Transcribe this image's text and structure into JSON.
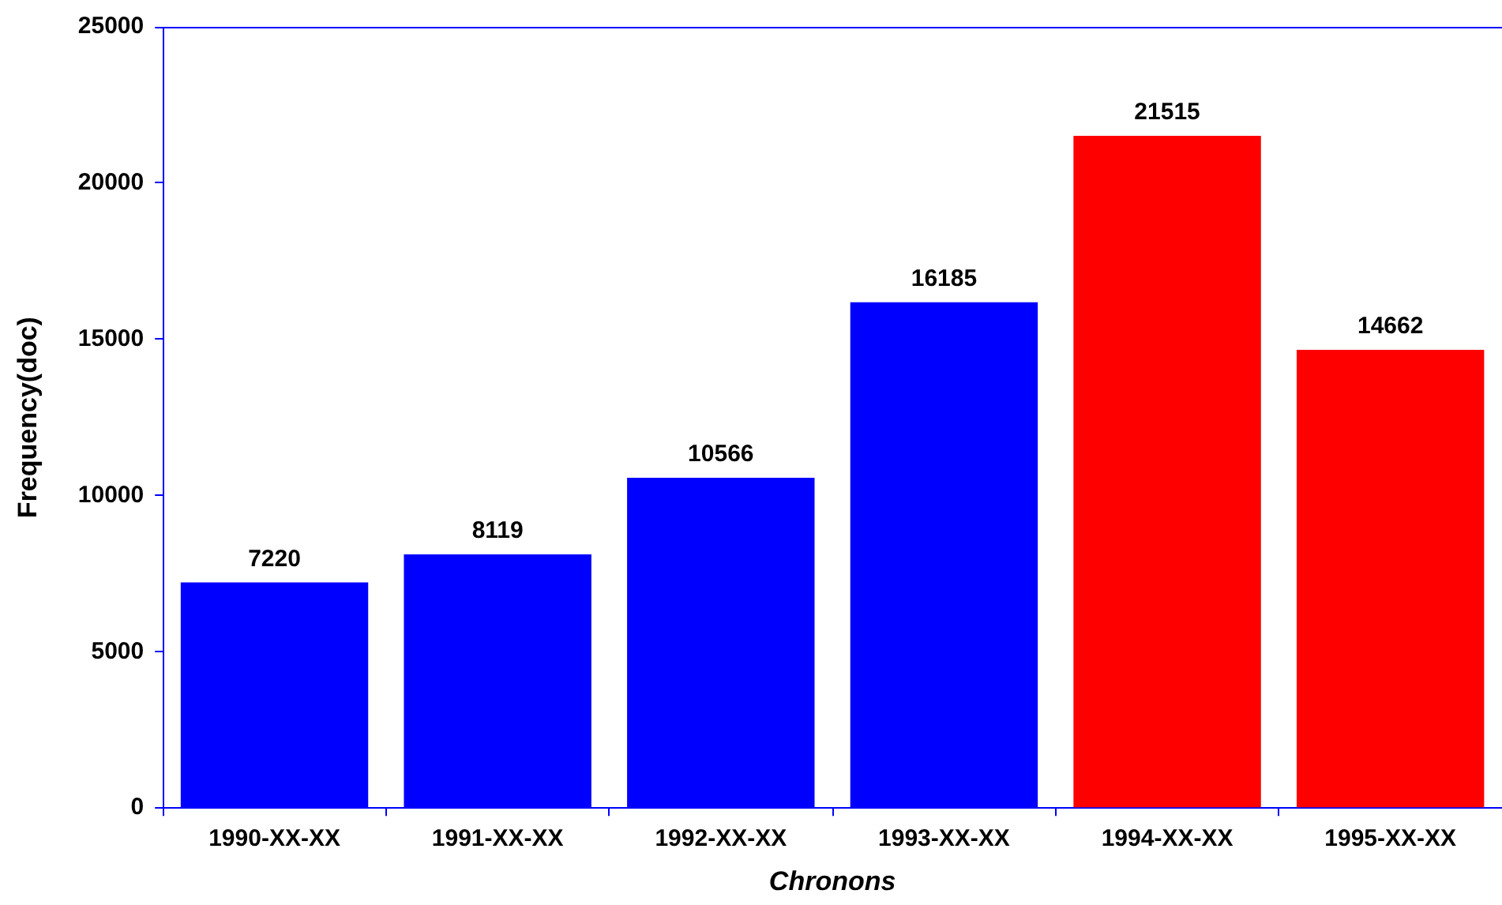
{
  "chart_data": {
    "type": "bar",
    "xlabel": "Chronons",
    "ylabel": "Frequency(doc)",
    "categories": [
      "1990-XX-XX",
      "1991-XX-XX",
      "1992-XX-XX",
      "1993-XX-XX",
      "1994-XX-XX",
      "1995-XX-XX"
    ],
    "values": [
      7220,
      8119,
      10566,
      16185,
      21515,
      14662
    ],
    "colors": [
      "#0000ff",
      "#0000ff",
      "#0000ff",
      "#0000ff",
      "#ff0000",
      "#ff0000"
    ],
    "ylim": [
      0,
      25000
    ],
    "yticks": [
      0,
      5000,
      10000,
      15000,
      20000,
      25000
    ],
    "data_labels": true,
    "legend": false
  }
}
